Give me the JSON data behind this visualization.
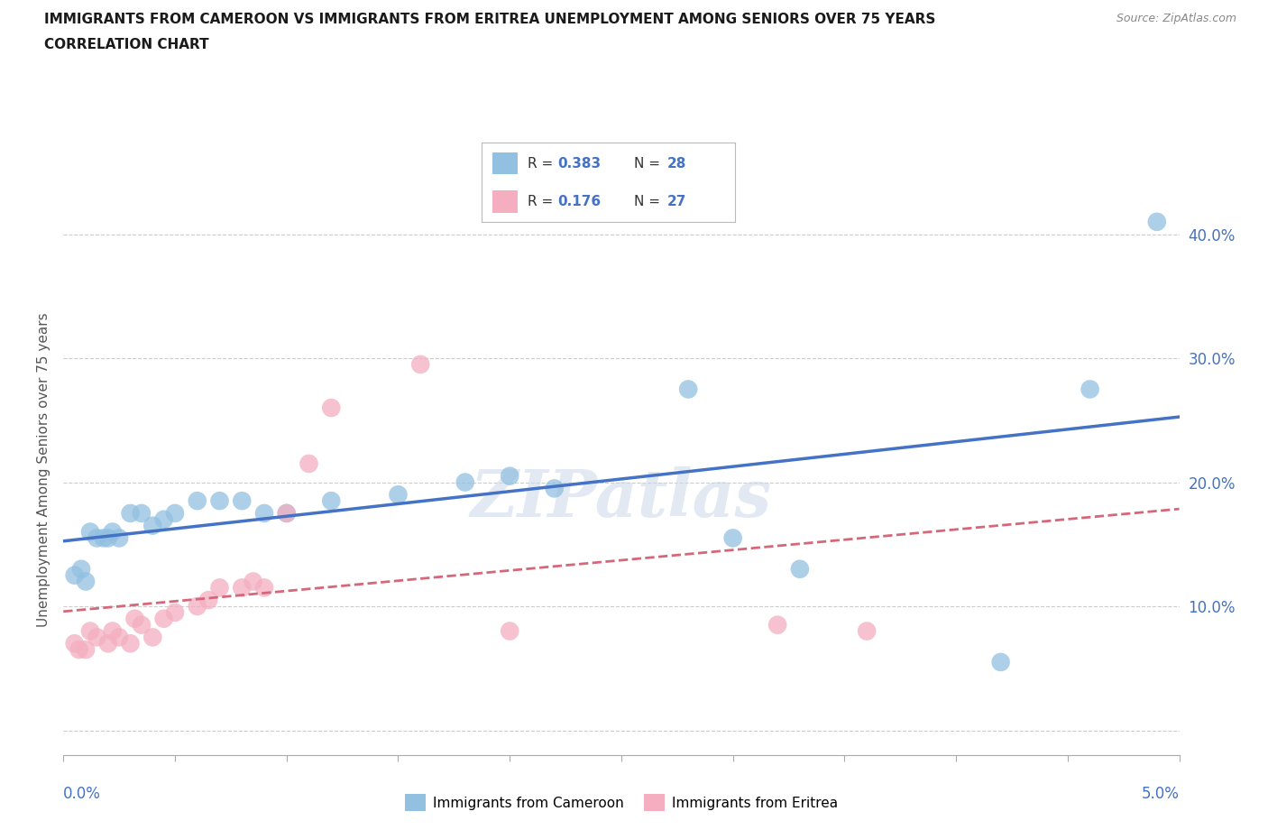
{
  "title_line1": "IMMIGRANTS FROM CAMEROON VS IMMIGRANTS FROM ERITREA UNEMPLOYMENT AMONG SENIORS OVER 75 YEARS",
  "title_line2": "CORRELATION CHART",
  "source_text": "Source: ZipAtlas.com",
  "ylabel": "Unemployment Among Seniors over 75 years",
  "watermark": "ZIPatlas",
  "cameroon_color": "#92c0e0",
  "eritrea_color": "#f4aec0",
  "trend_cameroon_color": "#4472c4",
  "trend_eritrea_color": "#d4687a",
  "xlim": [
    0.0,
    0.05
  ],
  "ylim": [
    -0.02,
    0.44
  ],
  "yticks": [
    0.0,
    0.1,
    0.2,
    0.3,
    0.4
  ],
  "ytick_labels": [
    "",
    "10.0%",
    "20.0%",
    "30.0%",
    "40.0%"
  ],
  "cameroon_points": [
    [
      0.0005,
      0.125
    ],
    [
      0.0008,
      0.13
    ],
    [
      0.001,
      0.12
    ],
    [
      0.0012,
      0.16
    ],
    [
      0.0015,
      0.155
    ],
    [
      0.0018,
      0.155
    ],
    [
      0.002,
      0.155
    ],
    [
      0.0022,
      0.16
    ],
    [
      0.0025,
      0.155
    ],
    [
      0.003,
      0.175
    ],
    [
      0.0035,
      0.175
    ],
    [
      0.004,
      0.165
    ],
    [
      0.0045,
      0.17
    ],
    [
      0.005,
      0.175
    ],
    [
      0.006,
      0.185
    ],
    [
      0.007,
      0.185
    ],
    [
      0.008,
      0.185
    ],
    [
      0.009,
      0.175
    ],
    [
      0.01,
      0.175
    ],
    [
      0.012,
      0.185
    ],
    [
      0.015,
      0.19
    ],
    [
      0.018,
      0.2
    ],
    [
      0.02,
      0.205
    ],
    [
      0.022,
      0.195
    ],
    [
      0.028,
      0.275
    ],
    [
      0.03,
      0.155
    ],
    [
      0.033,
      0.13
    ],
    [
      0.042,
      0.055
    ],
    [
      0.046,
      0.275
    ],
    [
      0.049,
      0.41
    ]
  ],
  "eritrea_points": [
    [
      0.0005,
      0.07
    ],
    [
      0.0007,
      0.065
    ],
    [
      0.001,
      0.065
    ],
    [
      0.0012,
      0.08
    ],
    [
      0.0015,
      0.075
    ],
    [
      0.002,
      0.07
    ],
    [
      0.0022,
      0.08
    ],
    [
      0.0025,
      0.075
    ],
    [
      0.003,
      0.07
    ],
    [
      0.0032,
      0.09
    ],
    [
      0.0035,
      0.085
    ],
    [
      0.004,
      0.075
    ],
    [
      0.0045,
      0.09
    ],
    [
      0.005,
      0.095
    ],
    [
      0.006,
      0.1
    ],
    [
      0.0065,
      0.105
    ],
    [
      0.007,
      0.115
    ],
    [
      0.008,
      0.115
    ],
    [
      0.0085,
      0.12
    ],
    [
      0.009,
      0.115
    ],
    [
      0.01,
      0.175
    ],
    [
      0.011,
      0.215
    ],
    [
      0.012,
      0.26
    ],
    [
      0.016,
      0.295
    ],
    [
      0.02,
      0.08
    ],
    [
      0.032,
      0.085
    ],
    [
      0.036,
      0.08
    ]
  ],
  "background_color": "#ffffff",
  "grid_color": "#cccccc",
  "title_color": "#1a1a1a",
  "axis_label_color": "#4472c4"
}
